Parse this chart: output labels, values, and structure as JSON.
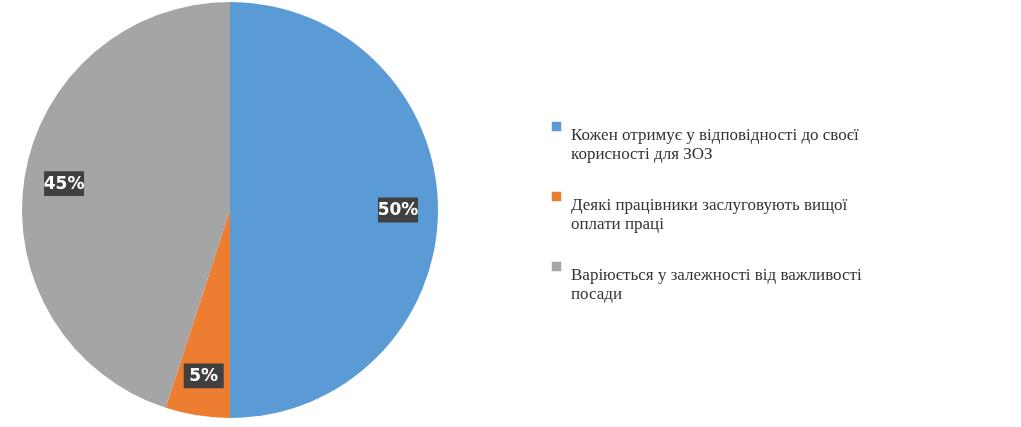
{
  "chart_data": {
    "type": "pie",
    "categories": [
      "Кожен отримує у відповідності до своєї корисності для ЗОЗ",
      "Деякі працівники заслуговують вищої оплати праці",
      "Варіюється у залежності від важливості посади"
    ],
    "values": [
      50,
      5,
      45
    ],
    "value_labels": [
      "50%",
      "5%",
      "45%"
    ],
    "colors": [
      "#5b9bd5",
      "#ed7d31",
      "#a5a5a5"
    ],
    "legend": "right"
  }
}
